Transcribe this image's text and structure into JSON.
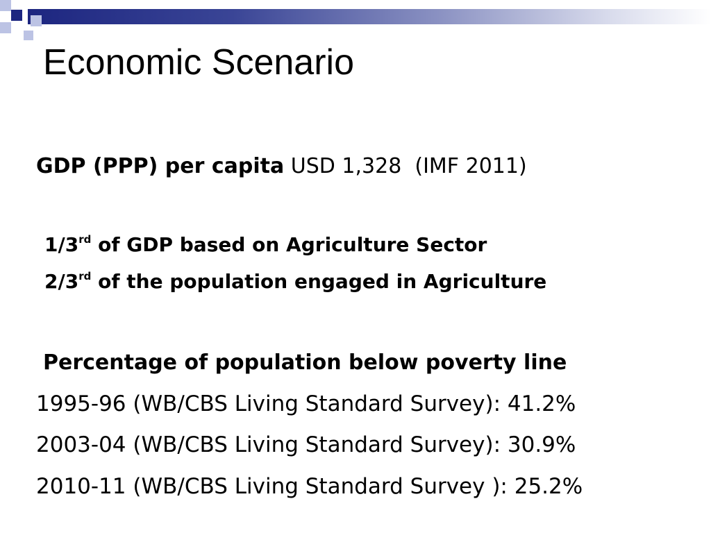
{
  "slide": {
    "title": "Economic Scenario",
    "gdp": {
      "label": "GDP (PPP) per capita",
      "value": "USD 1,328",
      "source": "(IMF 2011)"
    },
    "agriculture": [
      {
        "fraction": "1/3",
        "suffix": "rd",
        "text": "of GDP based on Agriculture Sector"
      },
      {
        "fraction": "2/3",
        "suffix": "rd",
        "text": "of the population engaged in Agriculture"
      }
    ],
    "poverty": {
      "heading": "Percentage of population below poverty line",
      "surveys": [
        "1995-96 (WB/CBS Living Standard Survey): 41.2%",
        "2003-04 (WB/CBS Living Standard Survey): 30.9%",
        "2010-11 (WB/CBS Living Standard Survey ): 25.2%"
      ]
    }
  },
  "colors": {
    "accent_navy": "#1d2680",
    "accent_light": "#bcc3e4"
  }
}
